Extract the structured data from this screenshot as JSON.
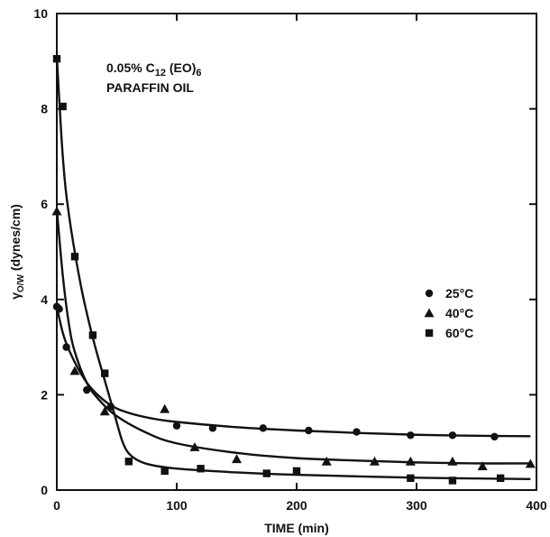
{
  "chart_data": {
    "type": "scatter",
    "xlabel": "TIME (min)",
    "ylabel_main": "γ",
    "ylabel_sub": "O/W",
    "ylabel_rest": " (dynes/cm)",
    "xlim": [
      0,
      400
    ],
    "ylim": [
      0,
      10
    ],
    "x_ticks": [
      0,
      100,
      200,
      300,
      400
    ],
    "y_ticks": [
      0,
      2,
      4,
      6,
      8,
      10
    ],
    "grid": false,
    "legend_position": "right-middle",
    "annotation": {
      "line1_prefix": "0.05% C",
      "line1_sub1": "12",
      "line1_mid": " (EO)",
      "line1_sub2": "6",
      "line2": "PARAFFIN OIL"
    },
    "series": [
      {
        "name": "25°C",
        "marker": "circle",
        "points": [
          [
            0,
            3.85
          ],
          [
            2,
            3.8
          ],
          [
            8,
            3.0
          ],
          [
            25,
            2.1
          ],
          [
            45,
            1.75
          ],
          [
            100,
            1.35
          ],
          [
            130,
            1.3
          ],
          [
            172,
            1.3
          ],
          [
            210,
            1.25
          ],
          [
            250,
            1.22
          ],
          [
            295,
            1.15
          ],
          [
            330,
            1.15
          ],
          [
            365,
            1.12
          ]
        ],
        "curve": [
          [
            0,
            3.85
          ],
          [
            5,
            3.3
          ],
          [
            10,
            2.95
          ],
          [
            20,
            2.45
          ],
          [
            30,
            2.1
          ],
          [
            45,
            1.78
          ],
          [
            60,
            1.62
          ],
          [
            80,
            1.5
          ],
          [
            100,
            1.43
          ],
          [
            150,
            1.32
          ],
          [
            200,
            1.25
          ],
          [
            250,
            1.2
          ],
          [
            300,
            1.16
          ],
          [
            350,
            1.14
          ],
          [
            395,
            1.13
          ]
        ]
      },
      {
        "name": "40°C",
        "marker": "triangle",
        "points": [
          [
            0,
            5.85
          ],
          [
            15,
            2.5
          ],
          [
            40,
            1.65
          ],
          [
            90,
            1.7
          ],
          [
            115,
            0.9
          ],
          [
            150,
            0.65
          ],
          [
            225,
            0.6
          ],
          [
            265,
            0.6
          ],
          [
            295,
            0.6
          ],
          [
            330,
            0.6
          ],
          [
            355,
            0.5
          ],
          [
            395,
            0.55
          ]
        ],
        "curve": [
          [
            0,
            5.9
          ],
          [
            5,
            4.5
          ],
          [
            10,
            3.5
          ],
          [
            15,
            2.9
          ],
          [
            25,
            2.25
          ],
          [
            35,
            1.9
          ],
          [
            50,
            1.55
          ],
          [
            75,
            1.2
          ],
          [
            100,
            0.98
          ],
          [
            150,
            0.78
          ],
          [
            200,
            0.67
          ],
          [
            250,
            0.62
          ],
          [
            300,
            0.58
          ],
          [
            350,
            0.56
          ],
          [
            395,
            0.56
          ]
        ]
      },
      {
        "name": "60°C",
        "marker": "square",
        "points": [
          [
            0,
            9.05
          ],
          [
            5,
            8.05
          ],
          [
            15,
            4.9
          ],
          [
            30,
            3.25
          ],
          [
            40,
            2.45
          ],
          [
            60,
            0.6
          ],
          [
            90,
            0.4
          ],
          [
            120,
            0.45
          ],
          [
            175,
            0.35
          ],
          [
            200,
            0.4
          ],
          [
            295,
            0.25
          ],
          [
            330,
            0.2
          ],
          [
            370,
            0.25
          ]
        ],
        "curve": [
          [
            0,
            9.1
          ],
          [
            5,
            7.0
          ],
          [
            10,
            5.8
          ],
          [
            20,
            4.3
          ],
          [
            30,
            3.2
          ],
          [
            40,
            2.3
          ],
          [
            48,
            1.6
          ],
          [
            55,
            1.0
          ],
          [
            62,
            0.72
          ],
          [
            75,
            0.55
          ],
          [
            100,
            0.45
          ],
          [
            150,
            0.37
          ],
          [
            200,
            0.32
          ],
          [
            300,
            0.26
          ],
          [
            395,
            0.23
          ]
        ]
      }
    ]
  }
}
